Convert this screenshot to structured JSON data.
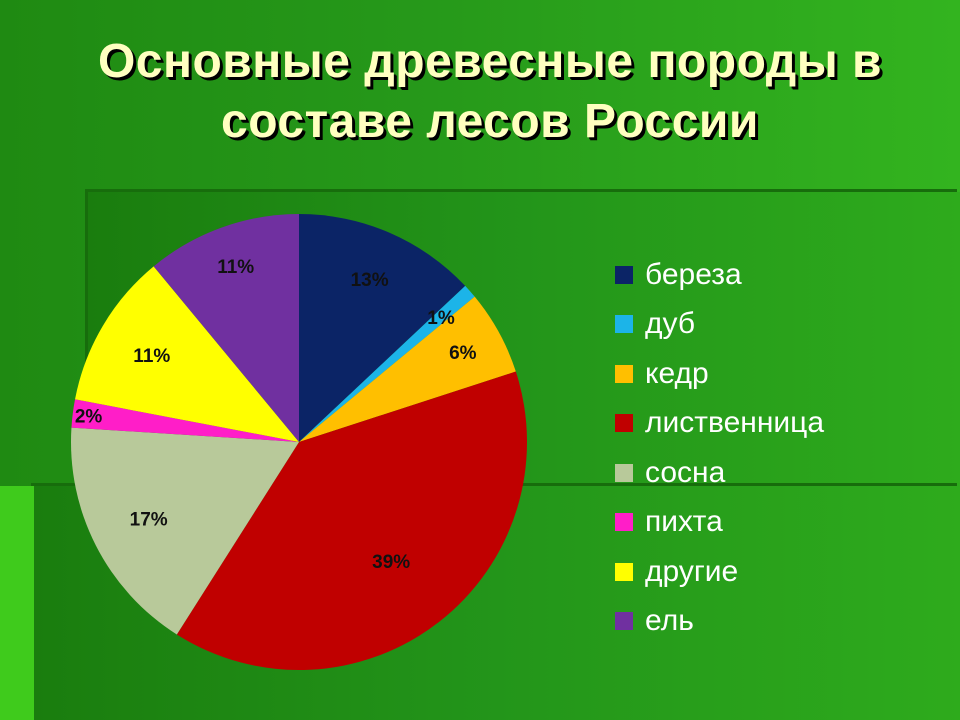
{
  "slide": {
    "title": "Основные древесные породы в составе лесов России"
  },
  "chart_data": {
    "type": "pie",
    "title": "Основные древесные породы в составе лесов России",
    "categories": [
      "береза",
      "дуб",
      "кедр",
      "лиственница",
      "сосна",
      "пихта",
      "другие",
      "ель"
    ],
    "values": [
      13,
      1,
      6,
      39,
      17,
      2,
      11,
      11
    ],
    "labels": [
      "13%",
      "1%",
      "6%",
      "39%",
      "17%",
      "2%",
      "11%",
      "11%"
    ],
    "colors": [
      "#0b2466",
      "#1cb4e8",
      "#ffbf00",
      "#c00000",
      "#b8c99a",
      "#ff1ec8",
      "#ffff00",
      "#7030a0"
    ],
    "legend_position": "right",
    "start_angle": "12 o'clock, clockwise"
  }
}
